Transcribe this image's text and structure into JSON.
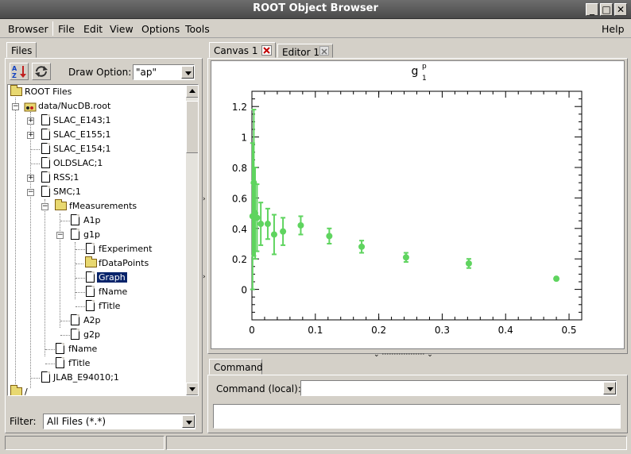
{
  "window": {
    "title": "ROOT Object Browser",
    "controls": [
      "_",
      "□",
      "✕"
    ]
  },
  "menu": {
    "browser": "Browser",
    "file": "File",
    "edit": "Edit",
    "view": "View",
    "options": "Options",
    "tools": "Tools",
    "help": "Help"
  },
  "left": {
    "files_tab": "Files",
    "draw_option_label": "Draw Option:",
    "draw_option_value": "\"ap\"",
    "filter_label": "Filter:",
    "filter_value": "All Files (*.*)"
  },
  "tree": [
    {
      "label": "ROOT Files",
      "icon": "folder-icon"
    },
    {
      "label": "data/NucDB.root",
      "icon": "root-file-icon"
    },
    {
      "label": "SLAC_E143;1",
      "icon": "file-icon"
    },
    {
      "label": "SLAC_E155;1",
      "icon": "file-icon"
    },
    {
      "label": "SLAC_E154;1",
      "icon": "file-icon"
    },
    {
      "label": "OLDSLAC;1",
      "icon": "file-icon"
    },
    {
      "label": "RSS;1",
      "icon": "file-icon"
    },
    {
      "label": "SMC;1",
      "icon": "file-icon"
    },
    {
      "label": "fMeasurements",
      "icon": "folder-icon"
    },
    {
      "label": "A1p",
      "icon": "file-icon"
    },
    {
      "label": "g1p",
      "icon": "file-icon"
    },
    {
      "label": "fExperiment",
      "icon": "file-icon"
    },
    {
      "label": "fDataPoints",
      "icon": "folder-icon"
    },
    {
      "label": "Graph",
      "icon": "file-icon"
    },
    {
      "label": "fName",
      "icon": "file-icon"
    },
    {
      "label": "fTitle",
      "icon": "file-icon"
    },
    {
      "label": "A2p",
      "icon": "file-icon"
    },
    {
      "label": "g2p",
      "icon": "file-icon"
    },
    {
      "label": "fName",
      "icon": "file-icon"
    },
    {
      "label": "fTitle",
      "icon": "file-icon"
    },
    {
      "label": "JLAB_E94010;1",
      "icon": "file-icon"
    },
    {
      "label": "/",
      "icon": "folder-icon"
    }
  ],
  "right": {
    "canvas_tab": "Canvas 1",
    "editor_tab": "Editor 1",
    "command_tab": "Command",
    "command_label": "Command (local):",
    "command_value": ""
  },
  "colors": {
    "marker": "#5fd45f",
    "selection": "#08246b",
    "titlebar": "#5a5a5a"
  },
  "chart_data": {
    "type": "scatter",
    "title": "g",
    "title_superscript": "p",
    "title_subscript": "1",
    "xlabel": "",
    "ylabel": "",
    "xlim": [
      0,
      0.52
    ],
    "ylim": [
      -0.2,
      1.3
    ],
    "xticks": [
      0,
      0.1,
      0.2,
      0.3,
      0.4,
      0.5
    ],
    "xtick_labels": [
      "0",
      "0.1",
      "0.2",
      "0.3",
      "0.4",
      "0.5"
    ],
    "yticks": [
      0,
      0.2,
      0.4,
      0.6,
      0.8,
      1.0,
      1.2
    ],
    "ytick_labels": [
      "0",
      "0.2",
      "0.4",
      "0.6",
      "0.8",
      "1",
      "1.2"
    ],
    "grid": false,
    "series": [
      {
        "points": [
          {
            "x": 0.001,
            "y": 0.48,
            "err": 0.48
          },
          {
            "x": 0.003,
            "y": 0.7,
            "err": 0.48
          },
          {
            "x": 0.005,
            "y": 0.5,
            "err": 0.3
          },
          {
            "x": 0.008,
            "y": 0.47,
            "err": 0.22
          },
          {
            "x": 0.014,
            "y": 0.43,
            "err": 0.14
          },
          {
            "x": 0.025,
            "y": 0.43,
            "err": 0.1
          },
          {
            "x": 0.035,
            "y": 0.36,
            "err": 0.13
          },
          {
            "x": 0.049,
            "y": 0.38,
            "err": 0.09
          },
          {
            "x": 0.077,
            "y": 0.42,
            "err": 0.06
          },
          {
            "x": 0.122,
            "y": 0.35,
            "err": 0.05
          },
          {
            "x": 0.173,
            "y": 0.28,
            "err": 0.04
          },
          {
            "x": 0.243,
            "y": 0.21,
            "err": 0.03
          },
          {
            "x": 0.342,
            "y": 0.17,
            "err": 0.03
          },
          {
            "x": 0.48,
            "y": 0.07,
            "err": 0.01
          }
        ]
      }
    ]
  }
}
